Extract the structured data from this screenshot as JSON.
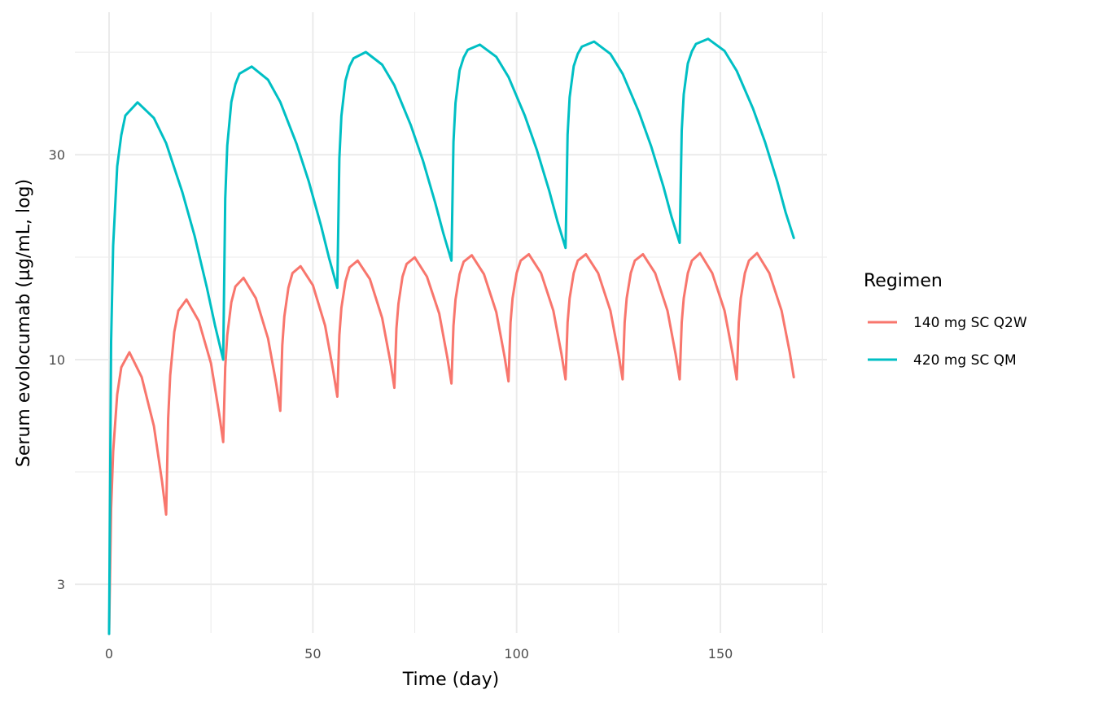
{
  "chart_data": {
    "type": "line",
    "xlabel": "Time (day)",
    "ylabel": "Serum evolocumab (µg/mL, log)",
    "y_scale": "log10",
    "xlim": [
      -8.4,
      176
    ],
    "ylim": [
      2.3,
      56
    ],
    "x_ticks": [
      0,
      50,
      100,
      150
    ],
    "x_tick_labels": [
      "0",
      "50",
      "100",
      "150"
    ],
    "x_minor_ticks": [
      25,
      75,
      125,
      175
    ],
    "y_ticks": [
      3,
      10,
      30
    ],
    "y_tick_labels": [
      "3",
      "10",
      "30"
    ],
    "grid": true,
    "legend": {
      "title": "Regimen",
      "placement": "right"
    },
    "series": [
      {
        "name": "140 mg SC Q2W",
        "color": "#F8766D",
        "t": [
          0,
          0.5,
          1,
          2,
          3,
          5,
          8,
          11,
          13,
          14,
          14.5,
          15,
          16,
          17,
          19,
          22,
          25,
          27,
          28,
          28.5,
          29,
          30,
          31,
          33,
          36,
          39,
          41,
          42,
          42.5,
          43,
          44,
          45,
          47,
          50,
          53,
          55,
          56,
          56.5,
          57,
          58,
          59,
          61,
          64,
          67,
          69,
          70,
          70.5,
          71,
          72,
          73,
          75,
          78,
          81,
          83,
          84,
          84.5,
          85,
          86,
          87,
          89,
          92,
          95,
          97,
          98,
          98.5,
          99,
          100,
          101,
          103,
          106,
          109,
          111,
          112,
          112.5,
          113,
          114,
          115,
          117,
          120,
          123,
          125,
          126,
          126.5,
          127,
          128,
          129,
          131,
          134,
          137,
          139,
          140,
          140.5,
          141,
          142,
          143,
          145,
          148,
          151,
          153,
          154,
          154.5,
          155,
          156,
          157,
          159,
          162,
          165,
          167,
          168
        ],
        "values": [
          2.3,
          4.5,
          6.1,
          8.3,
          9.6,
          10.4,
          9.1,
          7.0,
          5.2,
          4.36,
          7.3,
          9.2,
          11.6,
          13.0,
          13.8,
          12.3,
          9.8,
          7.5,
          6.43,
          9.6,
          11.4,
          13.6,
          14.8,
          15.5,
          13.9,
          11.2,
          8.8,
          7.6,
          10.8,
          12.6,
          14.7,
          15.9,
          16.5,
          14.9,
          12.0,
          9.4,
          8.2,
          11.4,
          13.2,
          15.2,
          16.4,
          17.0,
          15.4,
          12.5,
          9.9,
          8.6,
          11.8,
          13.5,
          15.6,
          16.7,
          17.3,
          15.6,
          12.8,
          10.1,
          8.8,
          12.0,
          13.8,
          15.8,
          16.9,
          17.5,
          15.8,
          12.9,
          10.2,
          8.9,
          12.2,
          13.9,
          15.9,
          17.0,
          17.6,
          15.9,
          13.0,
          10.3,
          9.0,
          12.2,
          13.9,
          15.9,
          17.0,
          17.6,
          15.9,
          13.0,
          10.3,
          9.0,
          12.2,
          13.9,
          15.9,
          17.0,
          17.6,
          15.9,
          13.0,
          10.3,
          9.0,
          12.2,
          13.9,
          15.9,
          17.0,
          17.7,
          15.9,
          13.0,
          10.3,
          9.0,
          12.2,
          13.9,
          15.9,
          17.0,
          17.7,
          15.9,
          13.0,
          10.4,
          9.1
        ]
      },
      {
        "name": "420 mg SC QM",
        "color": "#00BFC4",
        "t": [
          0,
          0.5,
          1,
          2,
          3,
          4,
          7,
          11,
          14,
          18,
          21,
          24,
          26,
          28,
          28.5,
          29,
          30,
          31,
          32,
          35,
          39,
          42,
          46,
          49,
          52,
          54,
          56,
          56.5,
          57,
          58,
          59,
          60,
          63,
          67,
          70,
          74,
          77,
          80,
          82,
          84,
          84.5,
          85,
          86,
          87,
          88,
          91,
          95,
          98,
          102,
          105,
          108,
          110,
          112,
          112.5,
          113,
          114,
          115,
          116,
          119,
          123,
          126,
          130,
          133,
          136,
          138,
          140,
          140.5,
          141,
          142,
          143,
          144,
          147,
          151,
          154,
          158,
          161,
          164,
          166,
          168
        ],
        "values": [
          2.3,
          11.0,
          18.4,
          28.2,
          33.3,
          37.0,
          39.7,
          36.5,
          31.9,
          24.5,
          19.4,
          14.7,
          12.0,
          10.0,
          23.7,
          31.5,
          39.8,
          43.8,
          46.3,
          48.1,
          44.8,
          39.8,
          31.8,
          26.0,
          20.5,
          17.2,
          14.7,
          29.4,
          36.9,
          44.6,
          48.2,
          50.3,
          52.0,
          48.6,
          43.5,
          35.2,
          29.1,
          23.2,
          19.7,
          17.0,
          32.1,
          39.6,
          47.1,
          50.5,
          52.6,
          54.1,
          50.7,
          45.5,
          37.0,
          30.7,
          24.7,
          21.0,
          18.2,
          33.4,
          40.8,
          48.2,
          51.5,
          53.5,
          55.0,
          51.5,
          46.3,
          37.7,
          31.4,
          25.3,
          21.5,
          18.7,
          34.1,
          41.5,
          48.9,
          52.2,
          54.3,
          55.8,
          52.3,
          47.0,
          38.4,
          32.0,
          25.9,
          22.0,
          19.2
        ]
      }
    ]
  }
}
